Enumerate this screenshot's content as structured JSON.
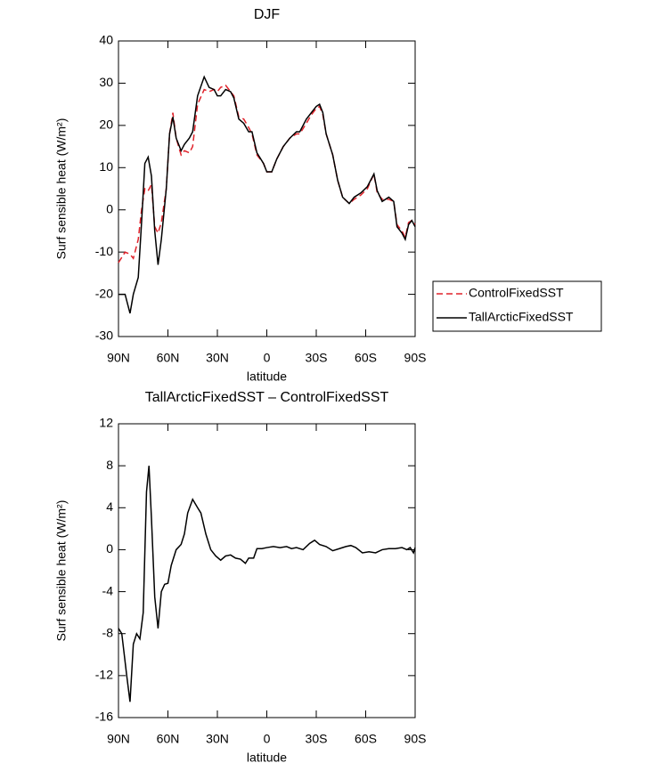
{
  "chart_data": [
    {
      "type": "line",
      "title": "DJF",
      "ylabel": "Surf sensible heat (W/m²)",
      "xlabel": "latitude",
      "x": [
        90,
        86,
        83,
        81,
        78,
        76,
        74,
        72,
        70,
        68,
        66,
        64,
        61,
        59,
        57,
        55,
        52,
        50,
        47,
        45,
        42,
        38,
        35,
        32,
        30,
        28,
        25,
        22,
        20,
        17,
        14,
        11,
        9,
        6,
        2,
        0,
        -3,
        -6,
        -10,
        -14,
        -18,
        -20,
        -24,
        -27,
        -30,
        -32,
        -34,
        -36,
        -40,
        -43,
        -46,
        -50,
        -53,
        -57,
        -61,
        -65,
        -67,
        -70,
        -74,
        -77,
        -79,
        -82,
        -84,
        -86,
        -88,
        -90
      ],
      "xlim": [
        90,
        -90
      ],
      "xticks": [
        {
          "value": 90,
          "label": "90N"
        },
        {
          "value": 60,
          "label": "60N"
        },
        {
          "value": 30,
          "label": "30N"
        },
        0,
        {
          "value": -30,
          "label": "30S"
        },
        {
          "value": -60,
          "label": "60S"
        },
        {
          "value": -90,
          "label": "90S"
        }
      ],
      "ylim": [
        -30,
        40
      ],
      "yticks": [
        -30,
        -20,
        -10,
        0,
        10,
        20,
        30,
        40
      ],
      "legend": "right",
      "series": [
        {
          "name": "ControlFixedSST",
          "color": "#e0222a",
          "dash": true,
          "values": [
            -12.5,
            -10,
            -10.5,
            -11.5,
            -7,
            0,
            5,
            4.5,
            6,
            -4,
            -5.5,
            -3,
            5,
            18,
            23,
            17,
            13,
            14,
            13.5,
            15,
            25,
            28.5,
            28,
            28.5,
            28,
            29,
            29.5,
            28,
            27,
            22,
            21.5,
            19.5,
            18,
            13,
            11,
            9,
            9,
            12,
            15,
            17,
            18,
            18,
            20.5,
            22.5,
            24,
            24.5,
            22.5,
            18,
            13,
            7,
            3,
            1.5,
            2.5,
            3.5,
            5,
            8.5,
            4,
            2.5,
            2.5,
            2,
            -3.5,
            -5,
            -6.5,
            -3,
            -2.5,
            -3.5
          ]
        },
        {
          "name": "TallArcticFixedSST",
          "color": "#000000",
          "dash": false,
          "values": [
            -20,
            -20,
            -24.5,
            -20,
            -16,
            -3,
            11,
            12.5,
            8,
            -5,
            -13,
            -7,
            5,
            18,
            22,
            17,
            14,
            15.5,
            17,
            18.5,
            27,
            31.5,
            29,
            28.5,
            27,
            27,
            28.5,
            28,
            26.5,
            21.5,
            20.5,
            18.5,
            18.5,
            13.5,
            11,
            9,
            9,
            12,
            15,
            17,
            18.5,
            18.5,
            21.5,
            23,
            24.5,
            25,
            23,
            18,
            13,
            7,
            3,
            1.5,
            3,
            4,
            5.5,
            8.5,
            4.5,
            2,
            3,
            2,
            -4,
            -5.5,
            -7,
            -3.5,
            -2.5,
            -4
          ]
        }
      ]
    },
    {
      "type": "line",
      "title": "TallArcticFixedSST – ControlFixedSST",
      "ylabel": "Surf sensible heat (W/m²)",
      "xlabel": "latitude",
      "x": [
        90,
        88,
        85,
        83,
        81,
        79,
        77,
        75,
        73,
        71.5,
        70,
        68,
        66,
        64,
        62,
        60,
        58,
        55,
        52,
        50,
        48,
        45,
        42,
        40,
        37,
        34,
        31,
        28,
        25,
        22,
        19,
        16,
        13,
        11,
        8,
        6,
        3,
        0,
        -4,
        -8,
        -12,
        -15,
        -18,
        -22,
        -26,
        -29,
        -32,
        -36,
        -40,
        -44,
        -48,
        -51,
        -54,
        -58,
        -62,
        -66,
        -70,
        -74,
        -78,
        -82,
        -85,
        -87,
        -89,
        -90
      ],
      "xlim": [
        90,
        -90
      ],
      "xticks": [
        {
          "value": 90,
          "label": "90N"
        },
        {
          "value": 60,
          "label": "60N"
        },
        {
          "value": 30,
          "label": "30N"
        },
        0,
        {
          "value": -30,
          "label": "30S"
        },
        {
          "value": -60,
          "label": "60S"
        },
        {
          "value": -90,
          "label": "90S"
        }
      ],
      "ylim": [
        -16,
        12
      ],
      "yticks": [
        -16,
        -12,
        -8,
        -4,
        0,
        4,
        8,
        12
      ],
      "series": [
        {
          "color": "#000000",
          "dash": false,
          "values": [
            -7.5,
            -8,
            -12,
            -14.5,
            -9,
            -8,
            -8.5,
            -6,
            5.5,
            8,
            3,
            -4.5,
            -7.5,
            -4,
            -3.3,
            -3.2,
            -1.5,
            0,
            0.5,
            1.5,
            3.5,
            4.8,
            4,
            3.5,
            1.5,
            0,
            -0.6,
            -1,
            -0.6,
            -0.5,
            -0.8,
            -0.9,
            -1.3,
            -0.8,
            -0.8,
            0.1,
            0.1,
            0.2,
            0.3,
            0.2,
            0.3,
            0.1,
            0.2,
            0,
            0.6,
            0.9,
            0.5,
            0.3,
            -0.1,
            0.1,
            0.3,
            0.4,
            0.2,
            -0.3,
            -0.2,
            -0.3,
            0,
            0.1,
            0.1,
            0.2,
            0,
            0.2,
            -0.3,
            0.2
          ]
        }
      ]
    }
  ]
}
